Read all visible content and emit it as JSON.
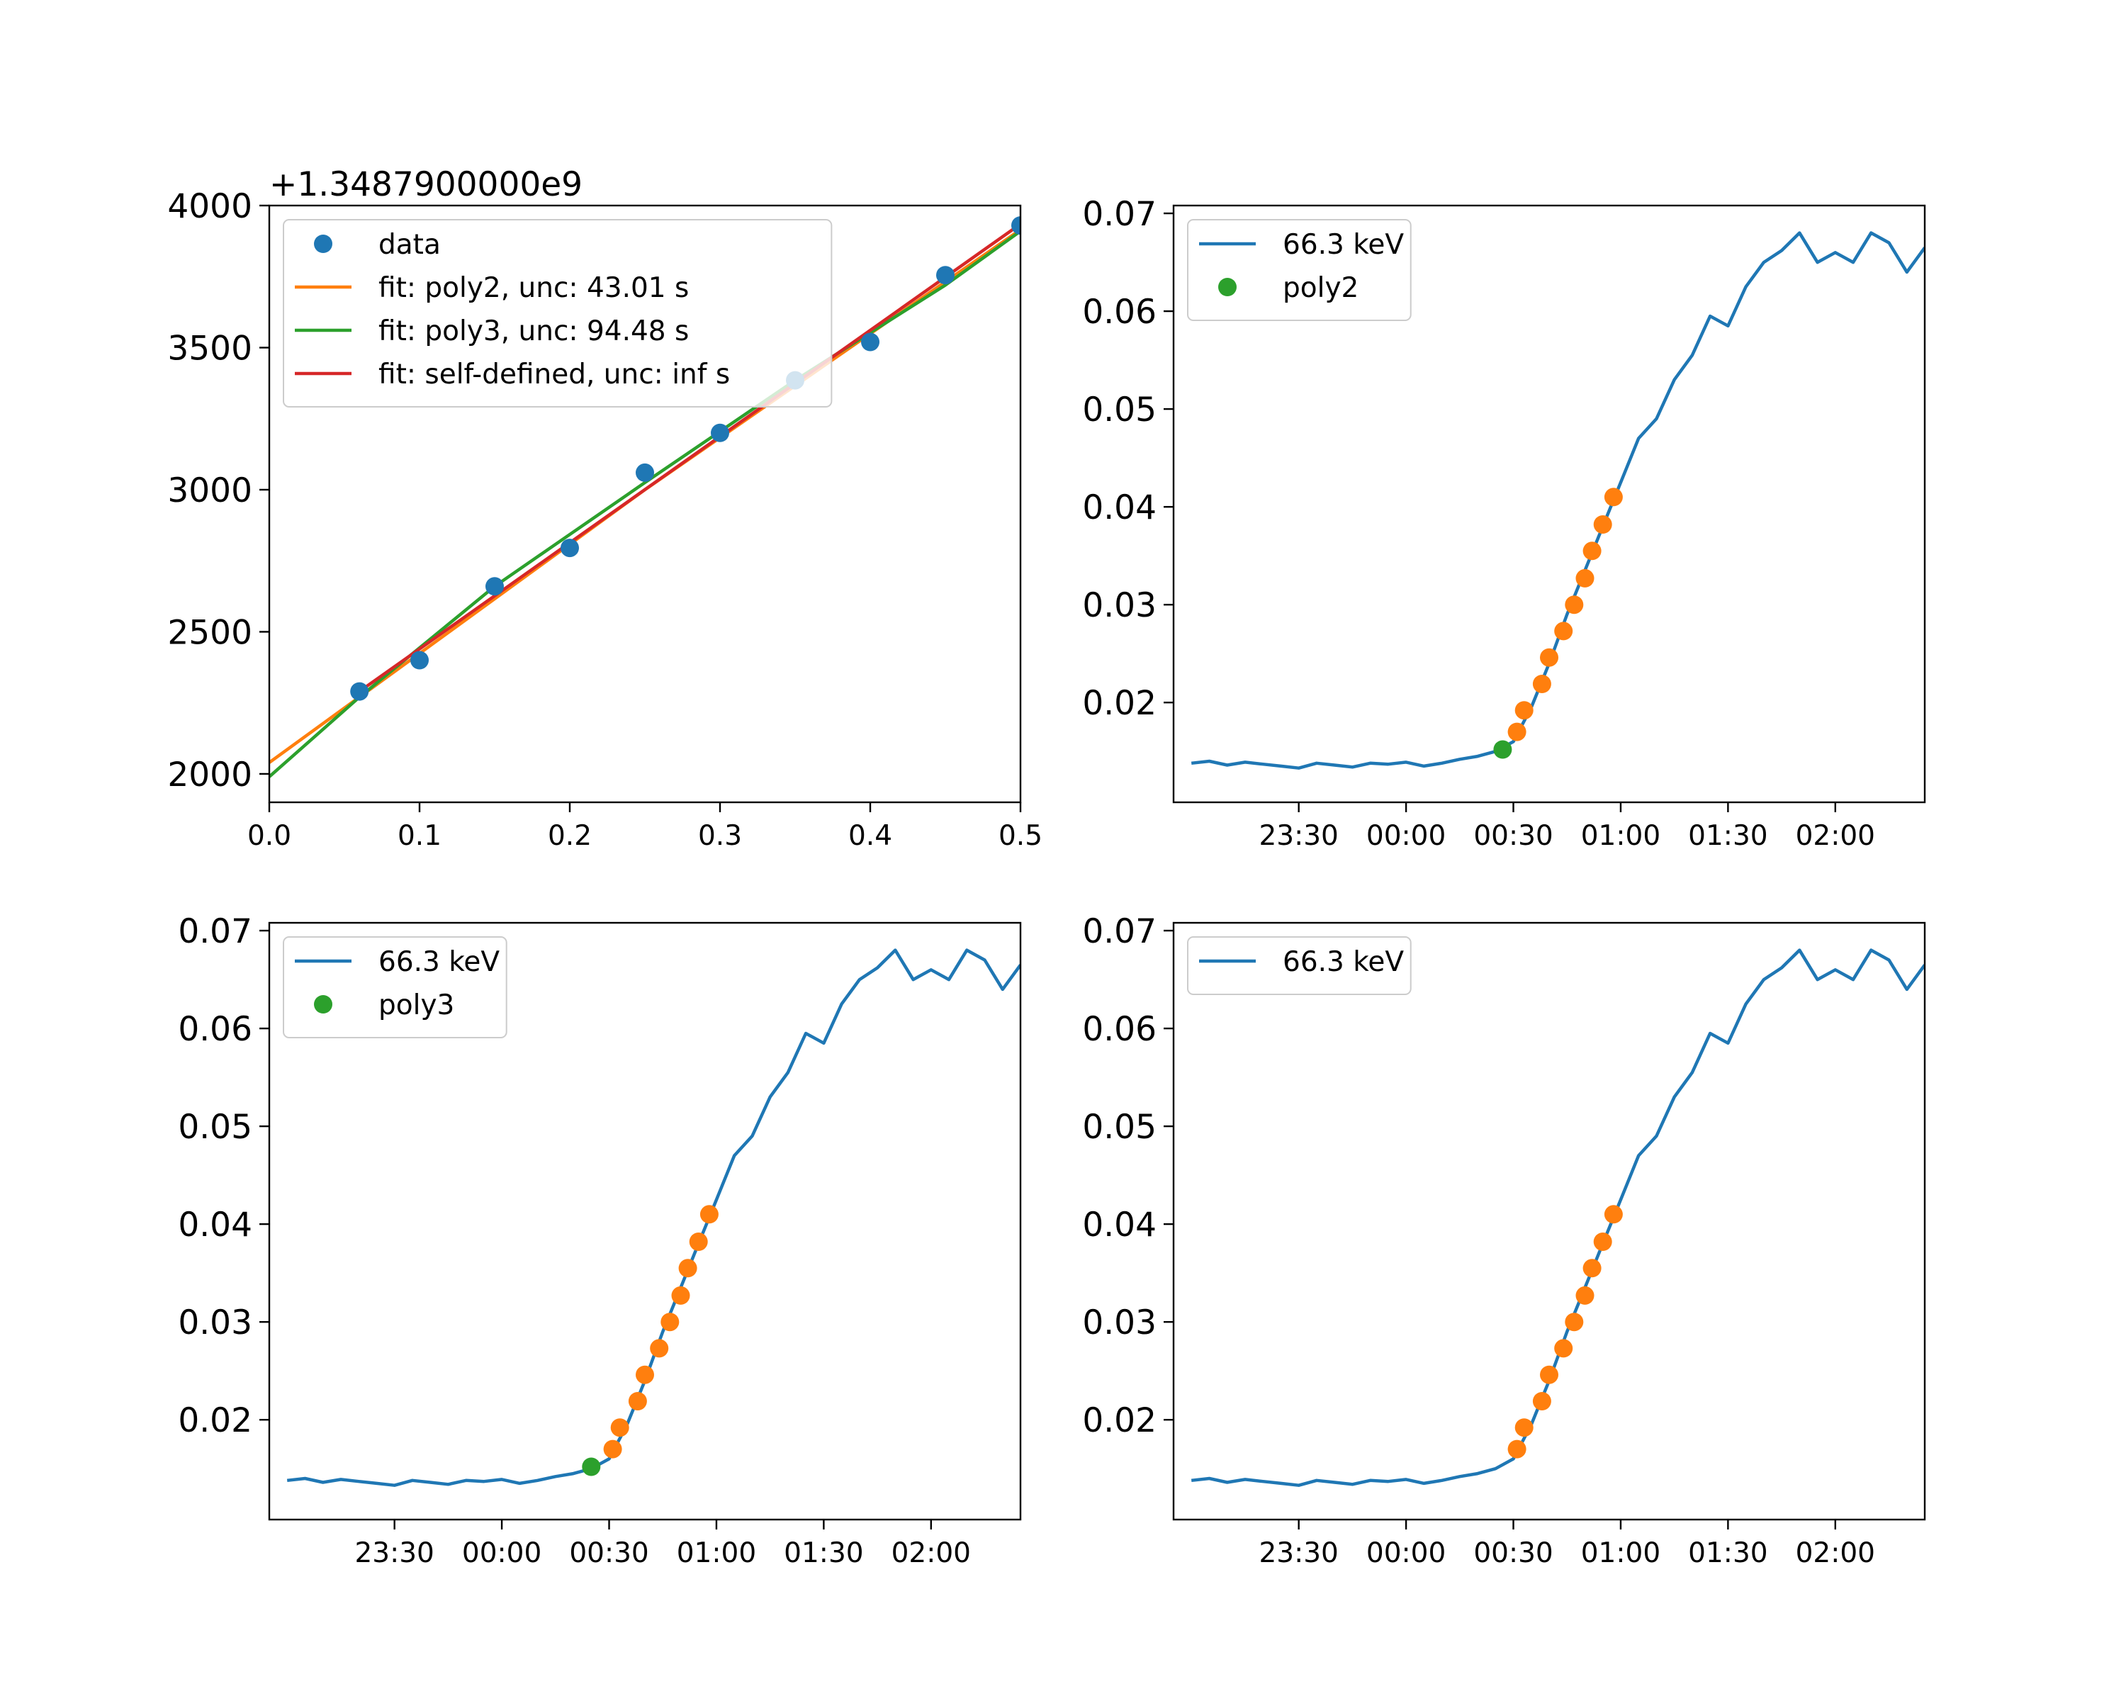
{
  "chart_data": [
    {
      "type": "scatter",
      "panel": "top-left",
      "offset_label": "+1.3487900000e9",
      "xlim": [
        0.0,
        0.5
      ],
      "ylim": [
        1900,
        4000
      ],
      "x_ticks": [
        "0.0",
        "0.1",
        "0.2",
        "0.3",
        "0.4",
        "0.5"
      ],
      "y_ticks": [
        "2000",
        "2500",
        "3000",
        "3500",
        "4000"
      ],
      "legend_placement": "upper-left",
      "series": [
        {
          "name": "data",
          "kind": "markers",
          "color": "#1f77b4",
          "x": [
            0.06,
            0.1,
            0.15,
            0.2,
            0.25,
            0.3,
            0.35,
            0.4,
            0.45,
            0.5
          ],
          "y": [
            2290,
            2400,
            2660,
            2795,
            3060,
            3200,
            3385,
            3520,
            3755,
            3930
          ]
        },
        {
          "name": "fit: poly2, unc: 43.01 s",
          "kind": "line",
          "color": "#ff7f0e",
          "x": [
            0.0,
            0.25,
            0.5
          ],
          "y": [
            2040,
            3000,
            3915
          ]
        },
        {
          "name": "fit: poly3, unc: 94.48 s",
          "kind": "line",
          "color": "#2ca02c",
          "x": [
            0.0,
            0.06,
            0.15,
            0.25,
            0.35,
            0.45,
            0.5
          ],
          "y": [
            1990,
            2270,
            2660,
            3025,
            3385,
            3720,
            3910
          ]
        },
        {
          "name": "fit: self-defined, unc: inf s",
          "kind": "line",
          "color": "#d62728",
          "x": [
            0.06,
            0.5
          ],
          "y": [
            2290,
            3935
          ]
        }
      ]
    },
    {
      "type": "line",
      "panel": "top-right",
      "x_range_minutes": [
        -65,
        145
      ],
      "ylim": [
        0.0098,
        0.0708
      ],
      "x_ticks": [
        "23:30",
        "00:00",
        "00:30",
        "01:00",
        "01:30",
        "02:00"
      ],
      "y_ticks": [
        "0.02",
        "0.03",
        "0.04",
        "0.05",
        "0.06",
        "0.07"
      ],
      "legend_placement": "upper-left",
      "series": [
        {
          "name": "66.3 keV",
          "kind": "line",
          "color": "#1f77b4"
        },
        {
          "name": "poly2",
          "kind": "markers",
          "color": "#2ca02c",
          "x": [
            "00:27"
          ],
          "y": [
            0.0152
          ]
        },
        {
          "kind": "markers",
          "color": "#ff7f0e",
          "x": [
            "00:31",
            "00:33",
            "00:38",
            "00:40",
            "00:44",
            "00:47",
            "00:50",
            "00:52",
            "00:55",
            "00:58"
          ],
          "y": [
            0.017,
            0.0192,
            0.0219,
            0.0246,
            0.0273,
            0.03,
            0.0327,
            0.0355,
            0.0382,
            0.041
          ]
        }
      ]
    },
    {
      "type": "line",
      "panel": "bottom-left",
      "x_range_minutes": [
        -65,
        145
      ],
      "ylim": [
        0.0098,
        0.0708
      ],
      "x_ticks": [
        "23:30",
        "00:00",
        "00:30",
        "01:00",
        "01:30",
        "02:00"
      ],
      "y_ticks": [
        "0.02",
        "0.03",
        "0.04",
        "0.05",
        "0.06",
        "0.07"
      ],
      "legend_placement": "upper-left",
      "series": [
        {
          "name": "66.3 keV",
          "kind": "line",
          "color": "#1f77b4"
        },
        {
          "name": "poly3",
          "kind": "markers",
          "color": "#2ca02c",
          "x": [
            "00:25"
          ],
          "y": [
            0.0152
          ]
        },
        {
          "kind": "markers",
          "color": "#ff7f0e",
          "x": [
            "00:31",
            "00:33",
            "00:38",
            "00:40",
            "00:44",
            "00:47",
            "00:50",
            "00:52",
            "00:55",
            "00:58"
          ],
          "y": [
            0.017,
            0.0192,
            0.0219,
            0.0246,
            0.0273,
            0.03,
            0.0327,
            0.0355,
            0.0382,
            0.041
          ]
        }
      ]
    },
    {
      "type": "line",
      "panel": "bottom-right",
      "x_range_minutes": [
        -65,
        145
      ],
      "ylim": [
        0.0098,
        0.0708
      ],
      "x_ticks": [
        "23:30",
        "00:00",
        "00:30",
        "01:00",
        "01:30",
        "02:00"
      ],
      "y_ticks": [
        "0.02",
        "0.03",
        "0.04",
        "0.05",
        "0.06",
        "0.07"
      ],
      "legend_placement": "upper-left",
      "series": [
        {
          "name": "66.3 keV",
          "kind": "line",
          "color": "#1f77b4"
        },
        {
          "kind": "markers",
          "color": "#ff7f0e",
          "x": [
            "00:31",
            "00:33",
            "00:38",
            "00:40",
            "00:44",
            "00:47",
            "00:50",
            "00:52",
            "00:55",
            "00:58"
          ],
          "y": [
            0.017,
            0.0192,
            0.0219,
            0.0246,
            0.0273,
            0.03,
            0.0327,
            0.0355,
            0.0382,
            0.041
          ]
        }
      ]
    }
  ],
  "energy_series_66_3_keV": {
    "name": "66.3 keV",
    "time": [
      "23:00",
      "23:05",
      "23:10",
      "23:15",
      "23:20",
      "23:25",
      "23:30",
      "23:35",
      "23:40",
      "23:45",
      "23:50",
      "23:55",
      "00:00",
      "00:05",
      "00:10",
      "00:15",
      "00:20",
      "00:25",
      "00:30",
      "00:35",
      "00:40",
      "00:45",
      "00:50",
      "00:55",
      "01:00",
      "01:05",
      "01:10",
      "01:15",
      "01:20",
      "01:25",
      "01:30",
      "01:35",
      "01:40",
      "01:45",
      "01:50",
      "01:55",
      "02:00",
      "02:05",
      "02:10",
      "02:15",
      "02:20",
      "02:25"
    ],
    "value": [
      0.0138,
      0.014,
      0.0136,
      0.0139,
      0.0137,
      0.0135,
      0.0133,
      0.0138,
      0.0136,
      0.0134,
      0.0138,
      0.0137,
      0.0139,
      0.0135,
      0.0138,
      0.0142,
      0.0145,
      0.015,
      0.016,
      0.0195,
      0.024,
      0.029,
      0.0335,
      0.038,
      0.0425,
      0.047,
      0.049,
      0.053,
      0.0555,
      0.0595,
      0.0585,
      0.0625,
      0.065,
      0.0662,
      0.068,
      0.065,
      0.066,
      0.065,
      0.068,
      0.067,
      0.064,
      0.0665
    ]
  }
}
